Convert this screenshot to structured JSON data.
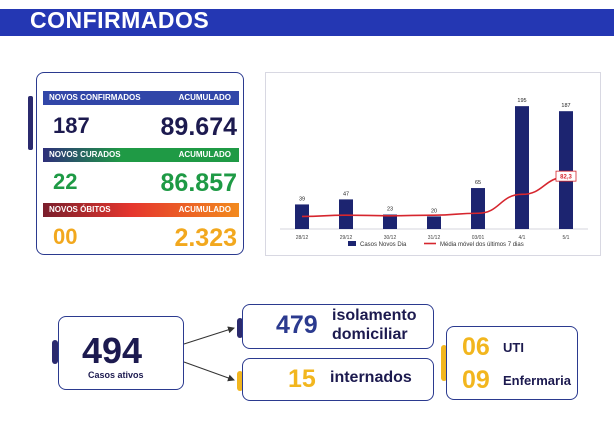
{
  "header": {
    "title": "CONFIRMADOS"
  },
  "stats": {
    "confirmados": {
      "label": "NOVOS CONFIRMADOS",
      "accum_label": "ACUMULADO",
      "new": "187",
      "accum": "89.674"
    },
    "curados": {
      "label": "NOVOS CURADOS",
      "accum_label": "ACUMULADO",
      "new": "22",
      "accum": "86.857"
    },
    "obitos": {
      "label": "NOVOS ÓBITOS",
      "accum_label": "ACUMULADO",
      "new": "00",
      "accum": "2.323"
    }
  },
  "chart_data": {
    "type": "bar",
    "categories": [
      "28/12",
      "29/12",
      "30/12",
      "31/12",
      "03/01",
      "4/1",
      "5/1"
    ],
    "series": [
      {
        "name": "Casos Novos Dia",
        "type": "bar",
        "color": "#1c2470",
        "values": [
          39,
          47,
          23,
          20,
          65,
          195,
          187
        ]
      },
      {
        "name": "Média móvel dos últimos 7 dias",
        "type": "line",
        "color": "#d6262e",
        "values": [
          20,
          22,
          21,
          22,
          25,
          55,
          82.3
        ]
      }
    ],
    "bar_labels": [
      "39",
      "47",
      "23",
      "20",
      "65",
      "195",
      "187"
    ],
    "line_annotation": "82,3",
    "ylim": [
      0,
      200
    ],
    "legend": [
      "Casos Novos Dia",
      "Média móvel dos últimos 7 dias"
    ]
  },
  "ativos": {
    "value": "494",
    "label": "Casos ativos"
  },
  "isolamento": {
    "value": "479",
    "line1": "isolamento",
    "line2": "domiciliar"
  },
  "internados": {
    "value": "15",
    "label": "internados"
  },
  "uti": {
    "value": "06",
    "label": "UTI"
  },
  "enfermaria": {
    "value": "09",
    "label": "Enfermaria"
  }
}
